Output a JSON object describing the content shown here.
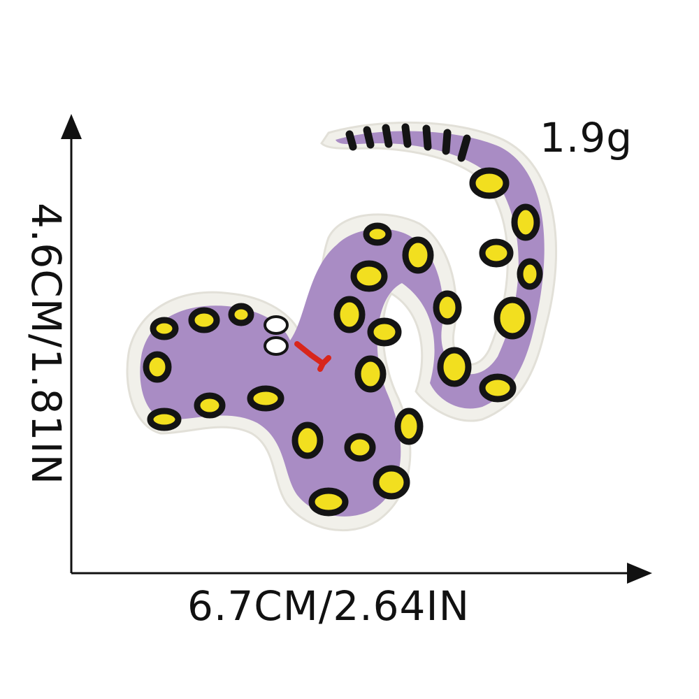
{
  "weight_label": "1.9g",
  "width_label": "6.7CM/2.64IN",
  "height_label": "4.6CM/1.81IN",
  "product": {
    "icon": "snake-patch-icon",
    "colors": {
      "body": "#a98cc4",
      "spot_outline": "#141414",
      "spot_fill": "#f2df1f",
      "tongue": "#d8261b",
      "backing": "#f1f0ea",
      "axis": "#111111"
    }
  }
}
